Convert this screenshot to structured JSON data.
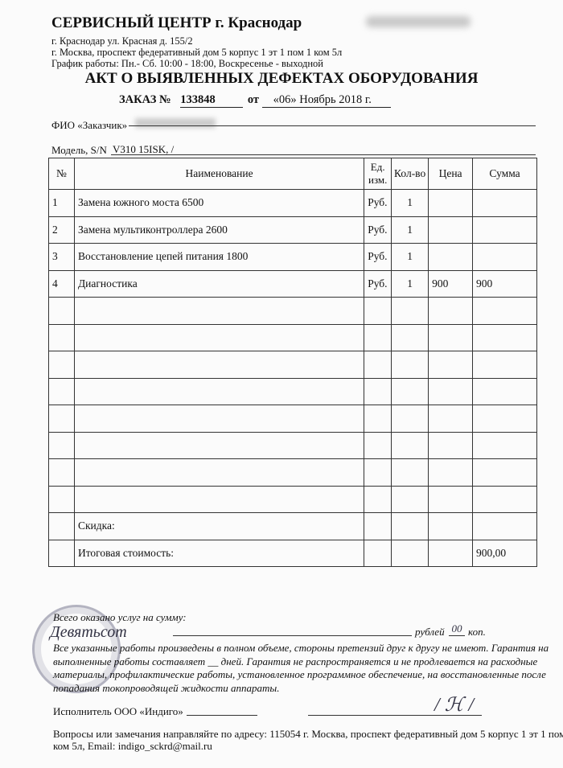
{
  "header": {
    "company": "СЕРВИСНЫЙ ЦЕНТР  г. Краснодар",
    "address1": "г. Краснодар ул. Красная д. 155/2",
    "address2": "г. Москва, проспект федеративный дом 5 корпус 1 эт 1 пом 1 ком 5л",
    "schedule": "График работы: Пн.- Сб.  10:00 - 18:00,  Воскресенье - выходной"
  },
  "title": "АКТ О ВЫЯВЛЕННЫХ ДЕФЕКТАХ ОБОРУДОВАНИЯ",
  "order": {
    "label": "ЗАКАЗ №",
    "number": "133848",
    "from": "от",
    "date": "«06»  Ноябрь  2018 г."
  },
  "customer_label": "ФИО «Заказчик»",
  "model": {
    "label": "Модель, S/N",
    "value": "V310 15ISK, /"
  },
  "table": {
    "headers": [
      "№",
      "Наименование",
      "Ед. изм.",
      "Кол-во",
      "Цена",
      "Сумма"
    ],
    "rows": [
      {
        "n": "1",
        "name": "Замена южного моста 6500",
        "unit": "Руб.",
        "qty": "1",
        "price": "",
        "sum": ""
      },
      {
        "n": "2",
        "name": "Замена мультиконтроллера 2600",
        "unit": "Руб.",
        "qty": "1",
        "price": "",
        "sum": ""
      },
      {
        "n": "3",
        "name": "Восстановление цепей питания 1800",
        "unit": "Руб.",
        "qty": "1",
        "price": "",
        "sum": ""
      },
      {
        "n": "4",
        "name": "Диагностика",
        "unit": "Руб.",
        "qty": "1",
        "price": "900",
        "sum": "900"
      }
    ],
    "discount_label": "Скидка:",
    "total_label": "Итоговая стоимость:",
    "total": "900,00"
  },
  "footer": {
    "sum_label": "Всего оказано услуг на сумму:",
    "rub": "рублей",
    "kop_value": "00",
    "kop": "коп.",
    "terms": "Все указанные работы произведены в полном объеме, стороны претензий друг к другу не имеют.  Гарантия на выполненные работы составляет __ дней. Гарантия не распространяется и не продлевается на расходные материалы, профилактические работы, установленное программное обеспечение, на восстановленные после попадания токопроводящей жидкости аппараты.",
    "executor": "Исполнитель ООО «Индиго»",
    "contact1": "Вопросы или замечания направляйте по адресу: 115054 г. Москва, проспект федеративный дом 5 корпус 1 эт 1 пом 1",
    "contact2": "ком 5л, Email: indigo_sckrd@mail.ru"
  },
  "stamp_text": "ОБЩЕСТВО С ОГРАНИЧЕННОЙ ОТВЕТСТВЕННОСТЬЮ «ИНДИГО» МОСКВА"
}
